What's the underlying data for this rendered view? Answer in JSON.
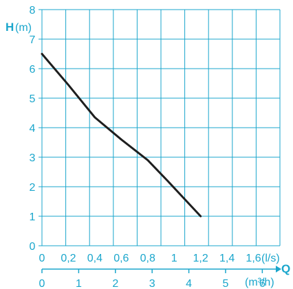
{
  "chart_data": {
    "type": "line",
    "colors": {
      "grid": "#1aa6cc",
      "curve": "#1e1e1e",
      "text": "#1aa6cc"
    },
    "y_axis": {
      "symbol": "H",
      "unit": "(m)",
      "range": [
        0,
        8
      ],
      "ticks": [
        "0",
        "1",
        "2",
        "3",
        "4",
        "5",
        "6",
        "7",
        "8"
      ]
    },
    "x_axis": {
      "symbol": "Q",
      "unit": "(l/s)",
      "range": [
        0,
        1.8
      ],
      "ticks": [
        "0",
        "0,2",
        "0,4",
        "0,6",
        "0,8",
        "1",
        "1,2",
        "1,4",
        "1,6"
      ]
    },
    "x2_axis": {
      "unit": "(m³/h)",
      "range": [
        0,
        6.48
      ],
      "ticks": [
        "0",
        "1",
        "2",
        "3",
        "4",
        "5",
        "6"
      ]
    },
    "grid": true,
    "series": [
      {
        "x": [
          0,
          0.2,
          0.4,
          0.6,
          0.8,
          0.95,
          1.2
        ],
        "y": [
          6.5,
          5.45,
          4.35,
          3.6,
          2.9,
          2.2,
          1.0
        ]
      }
    ]
  }
}
